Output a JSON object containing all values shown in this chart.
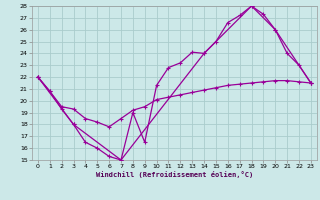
{
  "xlabel": "Windchill (Refroidissement éolien,°C)",
  "bg_color": "#cce8e8",
  "grid_color": "#aacccc",
  "line_color": "#990099",
  "xlim": [
    -0.5,
    23.5
  ],
  "ylim": [
    15,
    28
  ],
  "xticks": [
    0,
    1,
    2,
    3,
    4,
    5,
    6,
    7,
    8,
    9,
    10,
    11,
    12,
    13,
    14,
    15,
    16,
    17,
    18,
    19,
    20,
    21,
    22,
    23
  ],
  "yticks": [
    15,
    16,
    17,
    18,
    19,
    20,
    21,
    22,
    23,
    24,
    25,
    26,
    27,
    28
  ],
  "line1_x": [
    0,
    1,
    2,
    3,
    4,
    5,
    6,
    7,
    8,
    9,
    10,
    11,
    12,
    13,
    14,
    15,
    16,
    17,
    18,
    19,
    20,
    21,
    22,
    23
  ],
  "line1_y": [
    22,
    20.8,
    19.3,
    18.0,
    16.5,
    16.0,
    15.3,
    15.0,
    19.0,
    16.5,
    21.3,
    22.8,
    23.2,
    24.1,
    24.0,
    25.0,
    26.6,
    27.2,
    28.0,
    27.3,
    26.0,
    24.0,
    23.0,
    21.5
  ],
  "line2_x": [
    0,
    1,
    2,
    3,
    4,
    5,
    6,
    7,
    8,
    9,
    10,
    11,
    12,
    13,
    14,
    15,
    16,
    17,
    18,
    19,
    20,
    21,
    22,
    23
  ],
  "line2_y": [
    22,
    20.8,
    19.5,
    19.3,
    18.5,
    18.2,
    17.8,
    18.5,
    19.2,
    19.5,
    20.1,
    20.3,
    20.5,
    20.7,
    20.9,
    21.1,
    21.3,
    21.4,
    21.5,
    21.6,
    21.7,
    21.7,
    21.6,
    21.5
  ],
  "line3_x": [
    0,
    3,
    7,
    14,
    18,
    20,
    23
  ],
  "line3_y": [
    22,
    18.0,
    15.0,
    24.0,
    28.0,
    26.0,
    21.5
  ]
}
